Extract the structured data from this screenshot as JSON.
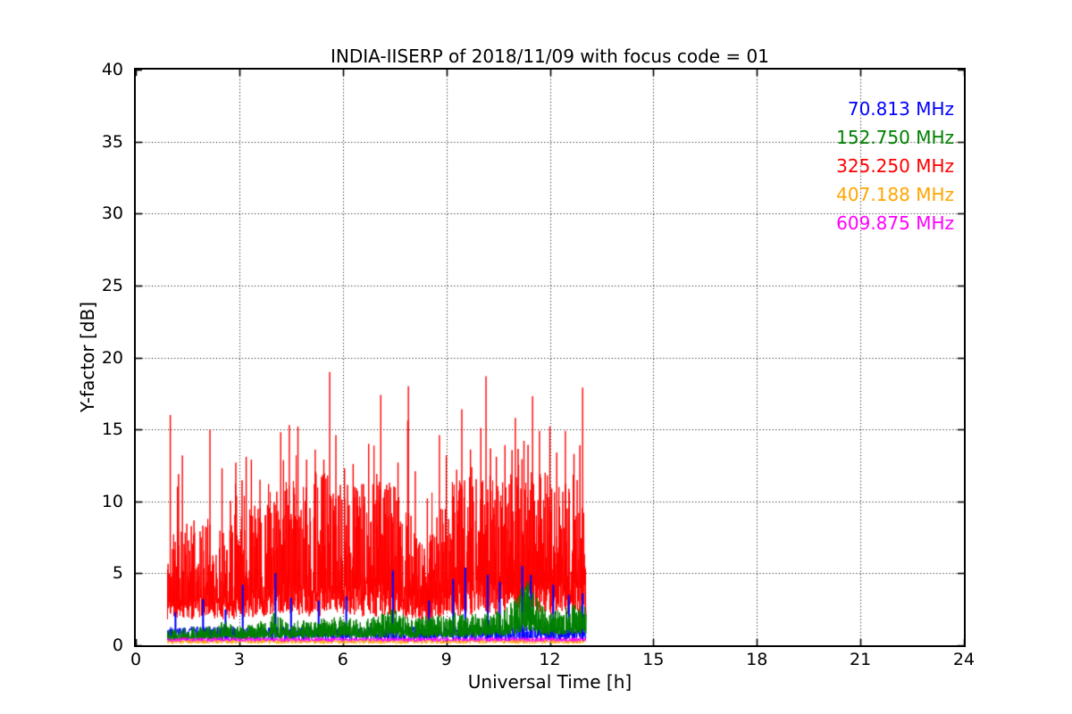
{
  "title": "INDIA-IISERP of 2018/11/09 with focus code = 01",
  "chart_data": {
    "type": "line",
    "title": "INDIA-IISERP of 2018/11/09 with focus code = 01",
    "xlabel": "Universal Time [h]",
    "ylabel": "Y-factor [dB]",
    "xlim": [
      0,
      24
    ],
    "ylim": [
      0,
      40
    ],
    "x_ticks": [
      0,
      3,
      6,
      9,
      12,
      15,
      18,
      21,
      24
    ],
    "y_ticks": [
      0,
      5,
      10,
      15,
      20,
      25,
      30,
      35,
      40
    ],
    "grid": "dotted black gridlines at every major tick",
    "legend_position": "upper right inside plot, colored text labels only (no line samples)",
    "data_time_range_h": [
      0.92,
      13.05
    ],
    "series": [
      {
        "name": "70.813 MHz",
        "color": "#0000ff",
        "z": 2,
        "style": "band-with-spikes",
        "band": [
          0.3,
          1.3
        ],
        "spikes": [
          [
            1.15,
            2.3
          ],
          [
            1.95,
            3.2
          ],
          [
            2.6,
            2.5
          ],
          [
            3.1,
            4.2
          ],
          [
            4.05,
            5.0
          ],
          [
            4.5,
            3.3
          ],
          [
            5.3,
            3.1
          ],
          [
            6.1,
            3.4
          ],
          [
            7.45,
            5.2
          ],
          [
            8.5,
            3.1
          ],
          [
            9.2,
            4.6
          ],
          [
            9.55,
            5.4
          ],
          [
            10.2,
            4.9
          ],
          [
            10.55,
            4.4
          ],
          [
            11.2,
            5.5
          ],
          [
            11.45,
            4.9
          ],
          [
            12.1,
            4.2
          ],
          [
            12.55,
            3.5
          ],
          [
            12.95,
            3.6
          ]
        ]
      },
      {
        "name": "152.750 MHz",
        "color": "#008000",
        "z": 3,
        "style": "mass",
        "envelope": [
          [
            0.92,
            0.35,
            1.2
          ],
          [
            1.5,
            0.35,
            1.25
          ],
          [
            2.0,
            0.4,
            1.3
          ],
          [
            2.6,
            0.4,
            1.7
          ],
          [
            3.0,
            0.4,
            1.35
          ],
          [
            3.5,
            0.4,
            1.5
          ],
          [
            4.0,
            0.45,
            2.3
          ],
          [
            4.4,
            0.45,
            1.8
          ],
          [
            5.0,
            0.45,
            1.7
          ],
          [
            5.5,
            0.5,
            1.9
          ],
          [
            6.0,
            0.5,
            2.0
          ],
          [
            6.5,
            0.5,
            1.8
          ],
          [
            7.0,
            0.5,
            2.1
          ],
          [
            7.5,
            0.55,
            2.6
          ],
          [
            8.0,
            0.5,
            1.9
          ],
          [
            8.5,
            0.5,
            2.1
          ],
          [
            9.0,
            0.55,
            2.2
          ],
          [
            9.5,
            0.55,
            2.3
          ],
          [
            10.0,
            0.55,
            2.2
          ],
          [
            10.5,
            0.6,
            2.4
          ],
          [
            10.9,
            0.7,
            3.0
          ],
          [
            11.2,
            0.9,
            4.2
          ],
          [
            11.35,
            1.0,
            4.6
          ],
          [
            11.6,
            0.8,
            3.4
          ],
          [
            11.9,
            0.7,
            2.4
          ],
          [
            12.3,
            0.7,
            2.5
          ],
          [
            12.7,
            0.8,
            2.9
          ],
          [
            13.05,
            0.8,
            2.8
          ]
        ]
      },
      {
        "name": "325.250 MHz",
        "color": "#ff0000",
        "z": 1,
        "style": "mass",
        "envelope": [
          [
            0.92,
            1.8,
            7.5
          ],
          [
            1.5,
            1.8,
            8.5
          ],
          [
            2.0,
            1.9,
            9.0
          ],
          [
            2.5,
            1.8,
            8.0
          ],
          [
            3.0,
            1.8,
            9.0
          ],
          [
            3.5,
            2.0,
            10.0
          ],
          [
            4.0,
            2.0,
            11.0
          ],
          [
            4.5,
            2.0,
            11.5
          ],
          [
            5.0,
            2.0,
            11.0
          ],
          [
            5.5,
            2.0,
            12.0
          ],
          [
            6.0,
            2.0,
            11.0
          ],
          [
            6.5,
            2.0,
            11.0
          ],
          [
            7.0,
            2.0,
            12.0
          ],
          [
            7.5,
            2.0,
            11.0
          ],
          [
            8.0,
            1.8,
            9.0
          ],
          [
            8.4,
            1.6,
            6.5
          ],
          [
            8.8,
            1.8,
            10.0
          ],
          [
            9.2,
            2.0,
            11.0
          ],
          [
            9.6,
            2.0,
            12.0
          ],
          [
            10.0,
            2.2,
            12.5
          ],
          [
            10.4,
            2.0,
            11.5
          ],
          [
            10.8,
            2.2,
            12.0
          ],
          [
            11.2,
            2.2,
            12.5
          ],
          [
            11.6,
            2.2,
            12.0
          ],
          [
            12.0,
            2.0,
            12.0
          ],
          [
            12.4,
            2.0,
            11.5
          ],
          [
            12.8,
            2.0,
            12.0
          ],
          [
            13.05,
            2.0,
            11.0
          ]
        ],
        "spikes": [
          [
            1.0,
            16.0
          ],
          [
            1.35,
            13.2
          ],
          [
            2.15,
            15.0
          ],
          [
            2.5,
            12.3
          ],
          [
            2.9,
            12.7
          ],
          [
            3.2,
            13.1
          ],
          [
            3.35,
            12.9
          ],
          [
            3.6,
            11.5
          ],
          [
            4.2,
            14.8
          ],
          [
            4.45,
            15.3
          ],
          [
            4.7,
            15.2
          ],
          [
            4.95,
            12.9
          ],
          [
            5.2,
            13.6
          ],
          [
            5.45,
            12.9
          ],
          [
            5.62,
            19.0
          ],
          [
            5.8,
            14.6
          ],
          [
            6.05,
            12.3
          ],
          [
            6.3,
            12.6
          ],
          [
            6.55,
            11.2
          ],
          [
            6.75,
            14.0
          ],
          [
            7.1,
            17.4
          ],
          [
            7.35,
            11.3
          ],
          [
            7.6,
            12.7
          ],
          [
            7.9,
            18.0
          ],
          [
            8.1,
            12.1
          ],
          [
            8.45,
            10.2
          ],
          [
            8.8,
            14.6
          ],
          [
            9.0,
            13.2
          ],
          [
            9.3,
            12.2
          ],
          [
            9.45,
            16.4
          ],
          [
            9.7,
            13.6
          ],
          [
            10.0,
            15.1
          ],
          [
            10.15,
            18.7
          ],
          [
            10.45,
            13.1
          ],
          [
            10.7,
            13.9
          ],
          [
            11.0,
            15.8
          ],
          [
            11.25,
            14.2
          ],
          [
            11.5,
            17.3
          ],
          [
            11.7,
            14.9
          ],
          [
            12.0,
            15.2
          ],
          [
            12.2,
            13.4
          ],
          [
            12.45,
            14.9
          ],
          [
            12.7,
            13.3
          ],
          [
            12.95,
            17.9
          ]
        ]
      },
      {
        "name": "407.188 MHz",
        "color": "#ffa500",
        "z": 4,
        "style": "band",
        "band": [
          0.1,
          0.45
        ]
      },
      {
        "name": "609.875 MHz",
        "color": "#ff00ff",
        "z": 5,
        "style": "band",
        "band": [
          0.25,
          0.55
        ]
      }
    ]
  }
}
